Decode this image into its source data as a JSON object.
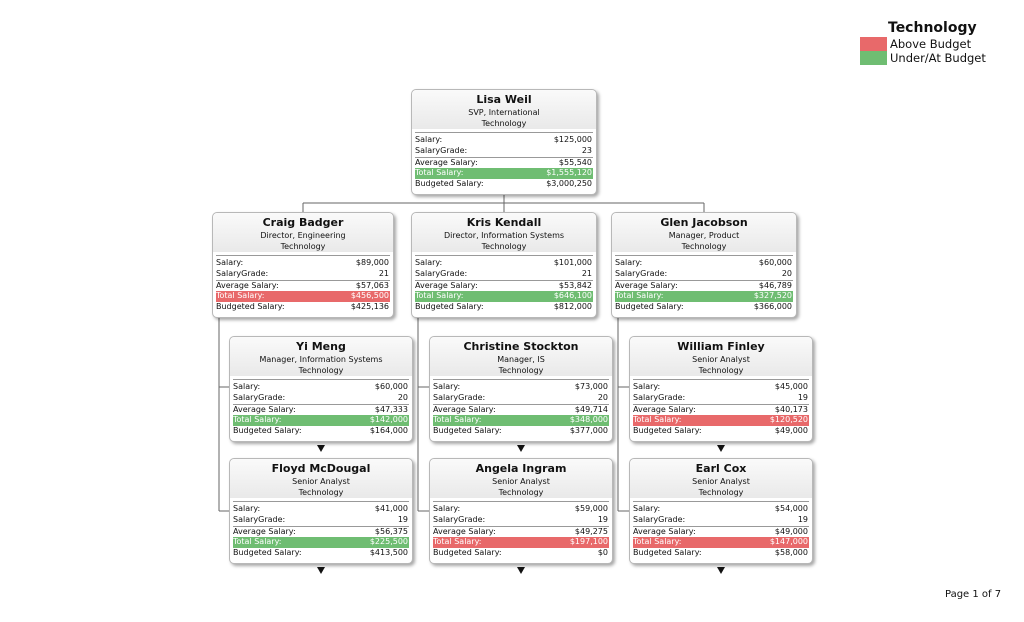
{
  "legend": {
    "title": "Technology",
    "items": [
      {
        "label": "Above Budget",
        "color": "#e8696a"
      },
      {
        "label": "Under/At Budget",
        "color": "#6fbd72"
      }
    ]
  },
  "page": "Page 1 of 7",
  "labels": {
    "salary": "Salary:",
    "grade": "SalaryGrade:",
    "avg": "Average Salary:",
    "total": "Total Salary:",
    "budget": "Budgeted Salary:"
  },
  "colors": {
    "above": "#e8696a",
    "under": "#6fbd72"
  },
  "cards": [
    {
      "name": "Lisa Weil",
      "title": "SVP, International",
      "dept": "Technology",
      "salary": "$125,000",
      "grade": "23",
      "avg": "$55,540",
      "total": "$1,555,120",
      "budget": "$3,000,250",
      "status": "under",
      "expand": false
    },
    {
      "name": "Craig Badger",
      "title": "Director, Engineering",
      "dept": "Technology",
      "salary": "$89,000",
      "grade": "21",
      "avg": "$57,063",
      "total": "$456,500",
      "budget": "$425,136",
      "status": "above",
      "expand": false
    },
    {
      "name": "Kris Kendall",
      "title": "Director, Information Systems",
      "dept": "Technology",
      "salary": "$101,000",
      "grade": "21",
      "avg": "$53,842",
      "total": "$646,100",
      "budget": "$812,000",
      "status": "under",
      "expand": false
    },
    {
      "name": "Glen Jacobson",
      "title": "Manager, Product",
      "dept": "Technology",
      "salary": "$60,000",
      "grade": "20",
      "avg": "$46,789",
      "total": "$327,520",
      "budget": "$366,000",
      "status": "under",
      "expand": false
    },
    {
      "name": "Yi Meng",
      "title": "Manager, Information Systems",
      "dept": "Technology",
      "salary": "$60,000",
      "grade": "20",
      "avg": "$47,333",
      "total": "$142,000",
      "budget": "$164,000",
      "status": "under",
      "expand": true
    },
    {
      "name": "Christine Stockton",
      "title": "Manager, IS",
      "dept": "Technology",
      "salary": "$73,000",
      "grade": "20",
      "avg": "$49,714",
      "total": "$348,000",
      "budget": "$377,000",
      "status": "under",
      "expand": true
    },
    {
      "name": "William Finley",
      "title": "Senior Analyst",
      "dept": "Technology",
      "salary": "$45,000",
      "grade": "19",
      "avg": "$40,173",
      "total": "$120,520",
      "budget": "$49,000",
      "status": "above",
      "expand": true
    },
    {
      "name": "Floyd McDougal",
      "title": "Senior Analyst",
      "dept": "Technology",
      "salary": "$41,000",
      "grade": "19",
      "avg": "$56,375",
      "total": "$225,500",
      "budget": "$413,500",
      "status": "under",
      "expand": true
    },
    {
      "name": "Angela Ingram",
      "title": "Senior Analyst",
      "dept": "Technology",
      "salary": "$59,000",
      "grade": "19",
      "avg": "$49,275",
      "total": "$197,100",
      "budget": "$0",
      "status": "above",
      "expand": true
    },
    {
      "name": "Earl Cox",
      "title": "Senior Analyst",
      "dept": "Technology",
      "salary": "$54,000",
      "grade": "19",
      "avg": "$49,000",
      "total": "$147,000",
      "budget": "$58,000",
      "status": "above",
      "expand": true
    }
  ]
}
